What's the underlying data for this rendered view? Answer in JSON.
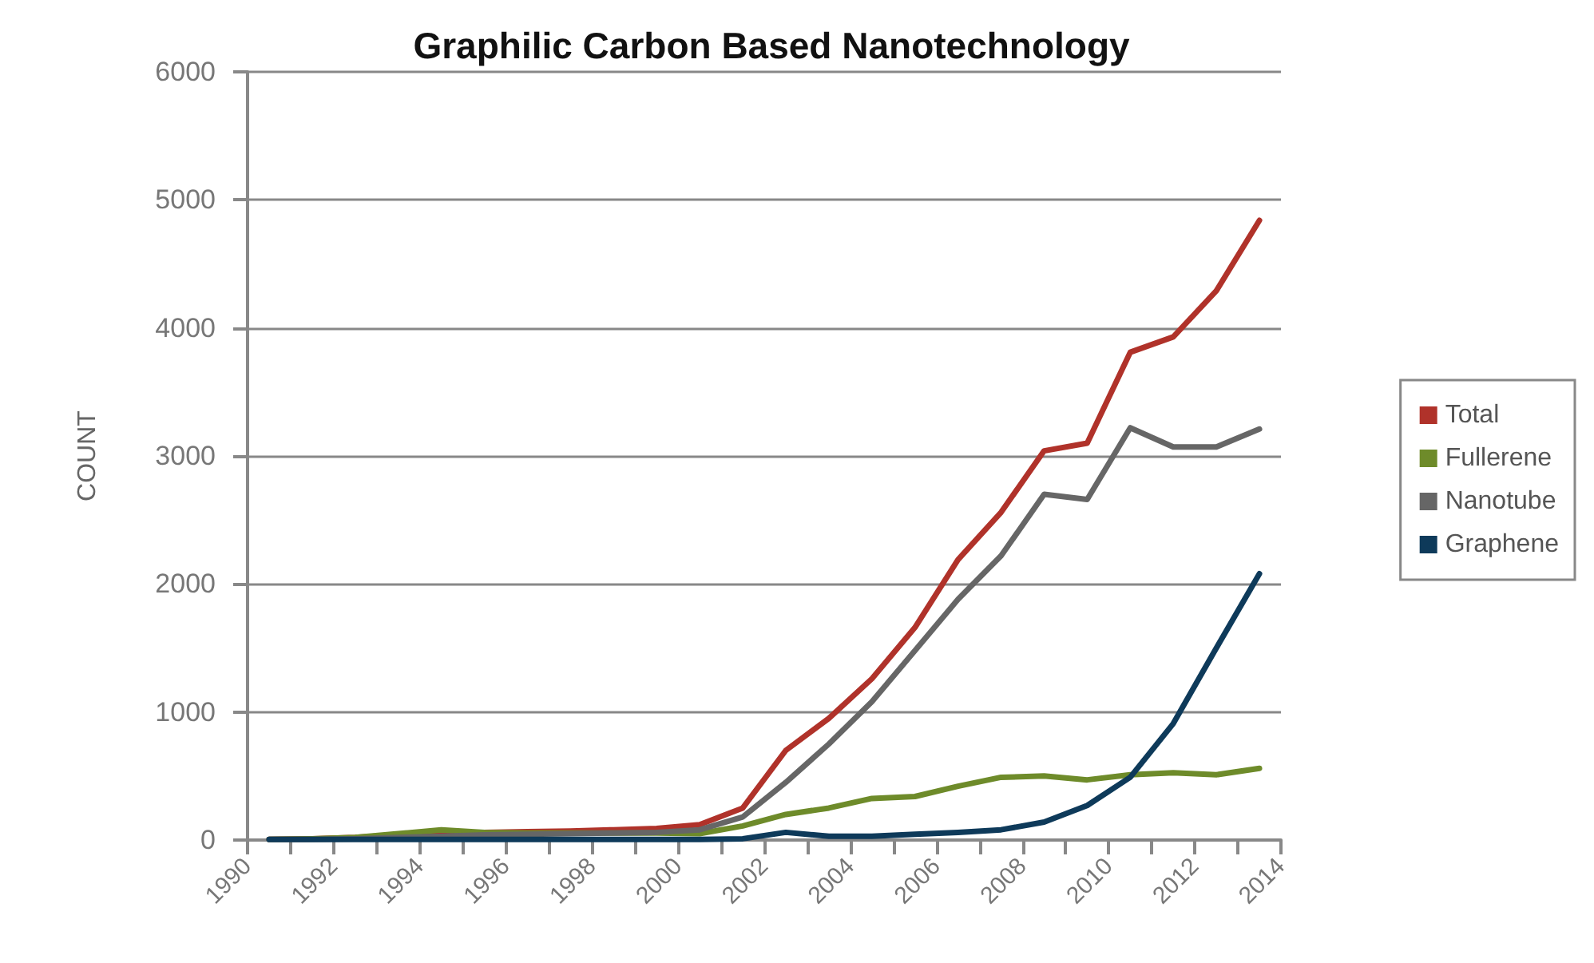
{
  "chart_data": {
    "type": "line",
    "title": "Graphilic Carbon Based Nanotechnology",
    "ylabel": "COUNT",
    "x": [
      1990.5,
      1991.5,
      1992.5,
      1993.5,
      1994.5,
      1995.5,
      1996.5,
      1997.5,
      1998.5,
      1999.5,
      2000.5,
      2001.5,
      2002.5,
      2003.5,
      2004.5,
      2005.5,
      2006.5,
      2007.5,
      2008.5,
      2009.5,
      2010.5,
      2011.5,
      2012.5,
      2013.5
    ],
    "series": [
      {
        "name": "Total",
        "color": "#b0322a",
        "values": [
          5,
          10,
          20,
          40,
          60,
          60,
          65,
          70,
          80,
          90,
          120,
          250,
          700,
          950,
          1260,
          1660,
          2190,
          2560,
          3040,
          3100,
          3810,
          3930,
          4290,
          4840
        ]
      },
      {
        "name": "Fullerene",
        "color": "#6e8b2a",
        "values": [
          5,
          10,
          20,
          50,
          80,
          60,
          55,
          55,
          55,
          55,
          50,
          110,
          200,
          250,
          325,
          340,
          420,
          490,
          500,
          470,
          510,
          525,
          510,
          560
        ]
      },
      {
        "name": "Nanotube",
        "color": "#666666",
        "values": [
          5,
          5,
          10,
          20,
          30,
          40,
          45,
          50,
          55,
          60,
          80,
          180,
          450,
          750,
          1080,
          1480,
          1880,
          2220,
          2700,
          2660,
          3220,
          3070,
          3070,
          3210
        ]
      },
      {
        "name": "Graphene",
        "color": "#0e3a5a",
        "values": [
          5,
          5,
          5,
          5,
          5,
          5,
          5,
          5,
          5,
          5,
          5,
          10,
          60,
          30,
          30,
          45,
          60,
          80,
          140,
          270,
          490,
          910,
          1500,
          2080
        ]
      }
    ],
    "xlim": [
      1990,
      2014
    ],
    "xticks": [
      1990,
      {
        "value": 1991,
        "label": null
      },
      1992,
      {
        "value": 1993,
        "label": null
      },
      1994,
      {
        "value": 1995,
        "label": null
      },
      1996,
      {
        "value": 1997,
        "label": null
      },
      1998,
      {
        "value": 1999,
        "label": null
      },
      2000,
      {
        "value": 2001,
        "label": null
      },
      2002,
      {
        "value": 2003,
        "label": null
      },
      2004,
      {
        "value": 2005,
        "label": null
      },
      2006,
      {
        "value": 2007,
        "label": null
      },
      2008,
      {
        "value": 2009,
        "label": null
      },
      2010,
      {
        "value": 2011,
        "label": null
      },
      2012,
      {
        "value": 2013,
        "label": null
      },
      2014
    ],
    "ylim": [
      0,
      6000
    ],
    "yticks": [
      0,
      1000,
      2000,
      3000,
      4000,
      5000,
      6000
    ],
    "grid": "y",
    "legend": "right",
    "marker": "none",
    "line_style": "solid"
  }
}
